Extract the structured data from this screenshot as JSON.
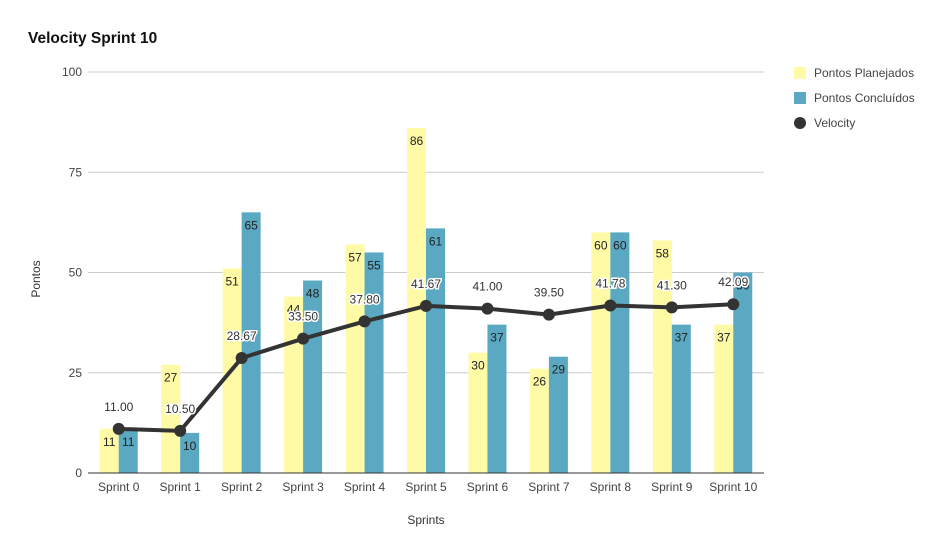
{
  "chart_data": {
    "type": "bar",
    "title": "Velocity Sprint 10",
    "xlabel": "Sprints",
    "ylabel": "Pontos",
    "ylim": [
      0,
      100
    ],
    "yticks": [
      0,
      25,
      50,
      75,
      100
    ],
    "grid": true,
    "legend_position": "right",
    "categories": [
      "Sprint 0",
      "Sprint 1",
      "Sprint 2",
      "Sprint 3",
      "Sprint 4",
      "Sprint 5",
      "Sprint 6",
      "Sprint 7",
      "Sprint 8",
      "Sprint 9",
      "Sprint 10"
    ],
    "series": [
      {
        "name": "Pontos Planejados",
        "type": "bar",
        "color": "#fffaa6",
        "values": [
          11,
          27,
          51,
          44,
          57,
          86,
          30,
          26,
          60,
          58,
          37
        ]
      },
      {
        "name": "Pontos Concluídos",
        "type": "bar",
        "color": "#5ba8c2",
        "values": [
          11,
          10,
          65,
          48,
          55,
          61,
          37,
          29,
          60,
          37,
          50
        ],
        "data_labels": [
          "11",
          "10",
          "65",
          "48",
          "55",
          "61",
          "37",
          "29",
          "60",
          "37",
          "50"
        ]
      },
      {
        "name": "Velocity",
        "type": "line",
        "color": "#333333",
        "values": [
          11.0,
          10.5,
          28.67,
          33.5,
          37.8,
          41.67,
          41.0,
          39.5,
          41.78,
          41.3,
          42.09
        ],
        "data_labels": [
          "11.00",
          "10.50",
          "28.67",
          "33.50",
          "37.80",
          "41.67",
          "41.00",
          "39.50",
          "41.78",
          "41.30",
          "42.09"
        ]
      }
    ]
  },
  "colors": {
    "grid": "#cccccc",
    "axis": "#333333",
    "text": "#444444"
  }
}
